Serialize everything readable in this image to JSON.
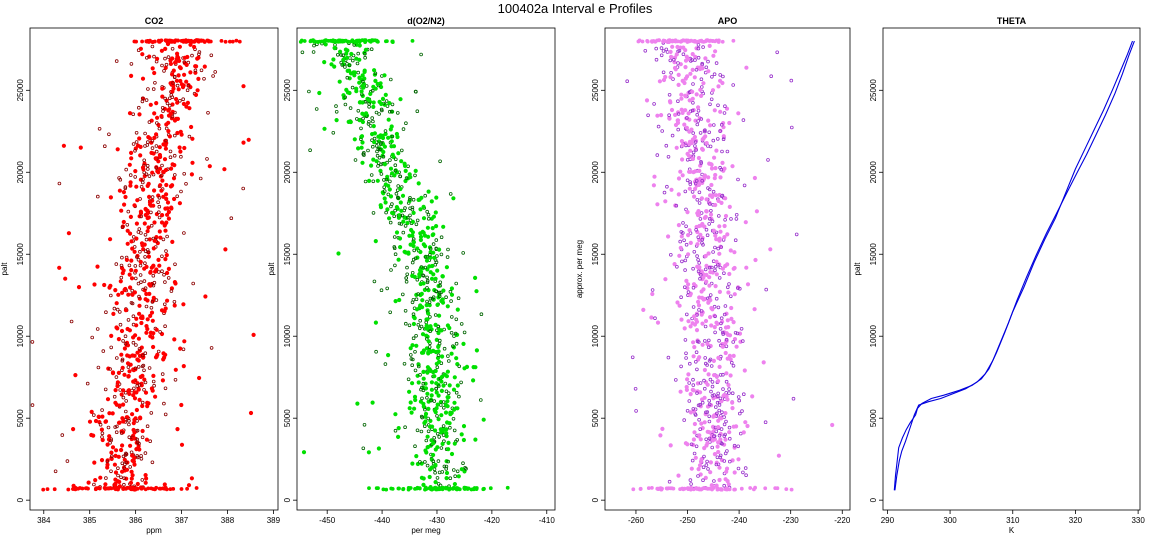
{
  "figure": {
    "title": "100402a   Interval e Profiles"
  },
  "chart_data": [
    {
      "type": "scatter",
      "title": "CO2",
      "xlabel": "ppm",
      "ylabel": "palt",
      "xlim": [
        383.7,
        389.1
      ],
      "ylim": [
        -600,
        28800
      ],
      "xticks": [
        384,
        385,
        386,
        387,
        388,
        389
      ],
      "yticks": [
        0,
        5000,
        10000,
        15000,
        20000,
        25000
      ],
      "color": "#ff0000",
      "edge_color": "#8b0000",
      "profile": {
        "y_start": 700,
        "y_end": 28000,
        "center_anchors": [
          [
            700,
            385.7
          ],
          [
            5000,
            385.8
          ],
          [
            10000,
            386.1
          ],
          [
            15000,
            386.2
          ],
          [
            20000,
            386.4
          ],
          [
            25000,
            386.8
          ],
          [
            28000,
            387.0
          ]
        ],
        "spread": 0.35,
        "outlier_spread": 1.2,
        "n_points": 900
      }
    },
    {
      "type": "scatter",
      "title": "d(O2/N2)",
      "xlabel": "per meg",
      "ylabel": "palt",
      "xlim": [
        -455.5,
        -408.5
      ],
      "ylim": [
        -600,
        28800
      ],
      "xticks": [
        -450,
        -440,
        -430,
        -420,
        -410
      ],
      "yticks": [
        0,
        5000,
        10000,
        15000,
        20000,
        25000
      ],
      "color": "#00e000",
      "edge_color": "#006400",
      "profile": {
        "y_start": 700,
        "y_end": 28000,
        "center_anchors": [
          [
            700,
            -429
          ],
          [
            5000,
            -430
          ],
          [
            10000,
            -431
          ],
          [
            15000,
            -433
          ],
          [
            20000,
            -438
          ],
          [
            25000,
            -444
          ],
          [
            28000,
            -447
          ]
        ],
        "spread": 2.5,
        "outlier_spread": 7,
        "n_points": 900
      }
    },
    {
      "type": "scatter",
      "title": "APO",
      "xlabel": "",
      "ylabel": "approx. per meg",
      "xlim": [
        -266,
        -218.5
      ],
      "ylim": [
        -600,
        28800
      ],
      "xticks": [
        -260,
        -250,
        -240,
        -230,
        -220
      ],
      "yticks": [
        0,
        5000,
        10000,
        15000,
        20000,
        25000
      ],
      "color": "#ee82ee",
      "edge_color": "#9932cc",
      "profile": {
        "y_start": 700,
        "y_end": 28000,
        "center_anchors": [
          [
            700,
            -245
          ],
          [
            10000,
            -245
          ],
          [
            20000,
            -247
          ],
          [
            28000,
            -251
          ]
        ],
        "spread": 3,
        "outlier_spread": 9,
        "n_points": 900
      }
    },
    {
      "type": "line",
      "title": "THETA",
      "xlabel": "K",
      "ylabel": "palt",
      "xlim": [
        289.3,
        330.3
      ],
      "ylim": [
        -600,
        28800
      ],
      "xticks": [
        290,
        300,
        310,
        320,
        330
      ],
      "yticks": [
        0,
        5000,
        10000,
        15000,
        20000,
        25000
      ],
      "color": "#0000dd",
      "series": [
        {
          "x": [
            291.1,
            291.3,
            291.6,
            291.8,
            292.4,
            293.0,
            293.6,
            294.5,
            294.8,
            295.5,
            297.0,
            299.0,
            301.5,
            303.5,
            305.0,
            306.2,
            307.4,
            308.7,
            310.0,
            311.8,
            313.4,
            315.1,
            316.8,
            318.4,
            320.0,
            321.5,
            323.0,
            324.5,
            326.0,
            327.2,
            328.3,
            329.1
          ],
          "y": [
            600,
            1500,
            2500,
            3200,
            3800,
            4300,
            4700,
            5200,
            5600,
            5900,
            6200,
            6400,
            6700,
            7000,
            7400,
            8000,
            9000,
            10200,
            11500,
            13000,
            14500,
            15900,
            17200,
            18700,
            20200,
            21400,
            22600,
            23800,
            25100,
            26200,
            27200,
            28000
          ]
        },
        {
          "x": [
            291.2,
            291.5,
            291.9,
            292.3,
            292.9,
            293.6,
            294.3,
            295.0,
            296.5,
            298.5,
            300.5,
            302.5,
            304.3,
            305.6,
            306.8,
            308.0,
            309.3,
            310.7,
            312.2,
            313.8,
            315.4,
            317.0,
            318.7,
            320.3,
            321.8,
            323.3,
            324.8,
            326.3,
            327.5,
            328.5,
            329.4
          ],
          "y": [
            600,
            1500,
            2400,
            3000,
            3600,
            4400,
            5200,
            5800,
            6000,
            6200,
            6500,
            6800,
            7200,
            7700,
            8500,
            9600,
            10800,
            12200,
            13600,
            15000,
            16300,
            17500,
            18800,
            20000,
            21100,
            22300,
            23500,
            24800,
            26000,
            27100,
            28000
          ]
        }
      ]
    }
  ]
}
